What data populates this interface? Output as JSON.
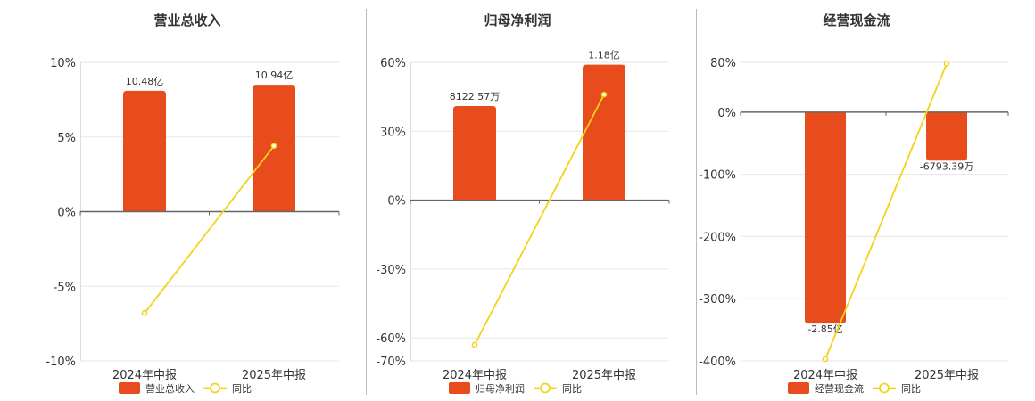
{
  "colors": {
    "bar": "#E84B1C",
    "line": "#F2D31A",
    "axis": "#666666",
    "grid": "#E6E6E6",
    "divider": "#BBBBBB"
  },
  "chart_data": [
    {
      "type": "bar",
      "title": "营业总收入",
      "categories": [
        "2024年中报",
        "2025年中报"
      ],
      "series": [
        {
          "name": "营业总收入",
          "type": "bar",
          "values": [
            10.48,
            10.94
          ],
          "labels": [
            "10.48亿",
            "10.94亿"
          ]
        },
        {
          "name": "同比",
          "type": "line",
          "values": [
            -6.8,
            4.4
          ]
        }
      ],
      "ylim": [
        -10,
        10
      ],
      "yticks": [
        10,
        5,
        0,
        -5,
        -10
      ],
      "ytick_labels": [
        "10%",
        "5%",
        "0%",
        "-5%",
        "-10%"
      ],
      "legend": "bottom",
      "grid": true
    },
    {
      "type": "bar",
      "title": "归母净利润",
      "categories": [
        "2024年中报",
        "2025年中报"
      ],
      "series": [
        {
          "name": "归母净利润",
          "type": "bar",
          "values": [
            0.812257,
            1.18
          ],
          "labels": [
            "8122.57万",
            "1.18亿"
          ]
        },
        {
          "name": "同比",
          "type": "line",
          "values": [
            -63,
            46
          ]
        }
      ],
      "ylim": [
        -70,
        60
      ],
      "yticks": [
        60,
        30,
        0,
        -30,
        -60,
        -70
      ],
      "ytick_labels": [
        "60%",
        "30%",
        "0%",
        "-30%",
        "-60%",
        "-70%"
      ],
      "legend": "bottom",
      "grid": true
    },
    {
      "type": "bar",
      "title": "经营现金流",
      "categories": [
        "2024年中报",
        "2025年中报"
      ],
      "series": [
        {
          "name": "经营现金流",
          "type": "bar",
          "values": [
            -2.85,
            -0.679339
          ],
          "labels": [
            "-2.85亿",
            "-6793.39万"
          ]
        },
        {
          "name": "同比",
          "type": "line",
          "values": [
            -397,
            78
          ]
        }
      ],
      "ylim": [
        -400,
        80
      ],
      "yticks": [
        80,
        0,
        -100,
        -200,
        -300,
        -400
      ],
      "ytick_labels": [
        "80%",
        "0%",
        "-100%",
        "-200%",
        "-300%",
        "-400%"
      ],
      "legend": "bottom",
      "grid": true
    }
  ]
}
